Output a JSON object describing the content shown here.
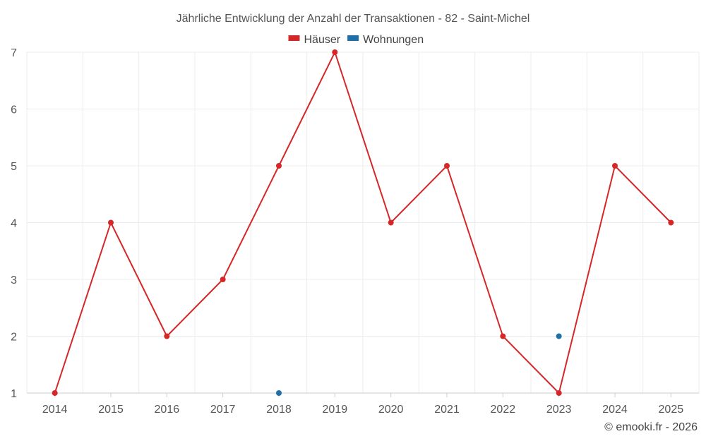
{
  "chart_data": {
    "type": "line",
    "title": "Jährliche Entwicklung der Anzahl der Transaktionen - 82 - Saint-Michel",
    "xlabel": "",
    "ylabel": "",
    "categories": [
      "2014",
      "2015",
      "2016",
      "2017",
      "2018",
      "2019",
      "2020",
      "2021",
      "2022",
      "2023",
      "2024",
      "2025"
    ],
    "ylim": [
      1,
      7
    ],
    "yticks": [
      1,
      2,
      3,
      4,
      5,
      6,
      7
    ],
    "grid": true,
    "legend_position": "top-center",
    "series": [
      {
        "name": "Häuser",
        "color": "#d62728",
        "values": [
          1,
          4,
          2,
          3,
          5,
          7,
          4,
          5,
          2,
          1,
          5,
          4
        ]
      },
      {
        "name": "Wohnungen",
        "color": "#1f6fa8",
        "values": [
          null,
          null,
          null,
          null,
          1,
          null,
          null,
          null,
          null,
          2,
          null,
          null
        ]
      }
    ]
  },
  "credit": "© emooki.fr - 2026"
}
